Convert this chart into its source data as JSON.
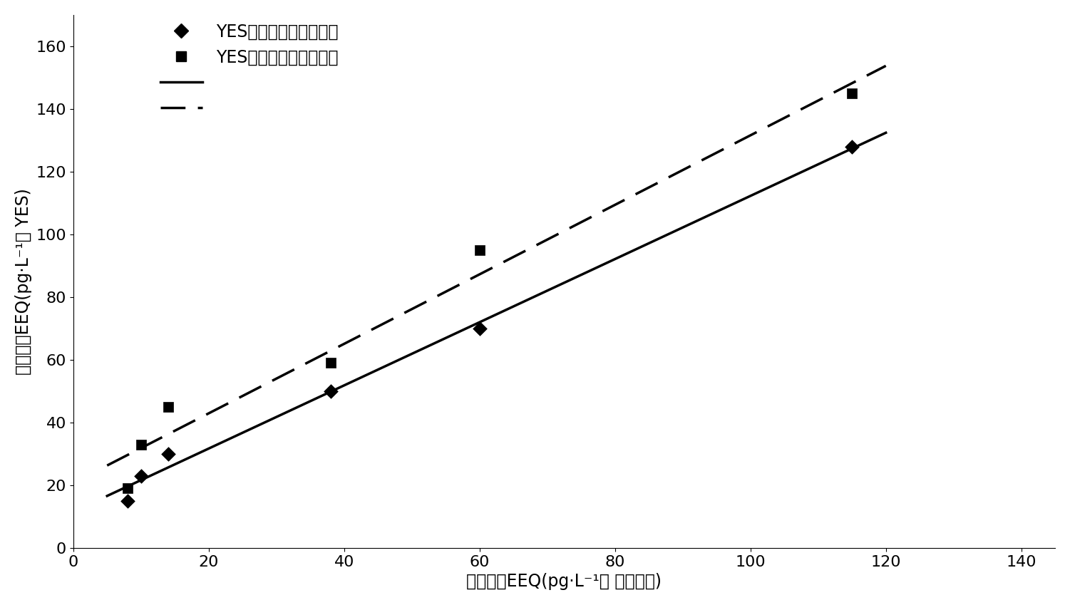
{
  "diamond_x": [
    8,
    10,
    14,
    38,
    60,
    115
  ],
  "diamond_y": [
    15,
    23,
    30,
    50,
    70,
    128
  ],
  "square_x": [
    8,
    10,
    14,
    38,
    60,
    115
  ],
  "square_y": [
    19,
    33,
    45,
    59,
    95,
    145
  ],
  "xlabel": "毒性当量EEQ(pg·L⁻¹， 质谱分析)",
  "ylabel": "毒性当量EEQ(pg·L⁻¹， YES)",
  "legend_marker1": "YES（双杂交酵母细胞）",
  "legend_marker2": "YES（单杂交酵母细胞）",
  "xlim": [
    0,
    145
  ],
  "ylim": [
    0,
    170
  ],
  "xticks": [
    0,
    20,
    40,
    60,
    80,
    100,
    120,
    140
  ],
  "yticks": [
    0,
    20,
    40,
    60,
    80,
    100,
    120,
    140,
    160
  ],
  "background_color": "#ffffff",
  "line_color": "#000000",
  "marker_color": "#000000",
  "title_fontsize": 18,
  "label_fontsize": 17,
  "tick_fontsize": 16,
  "legend_fontsize": 17
}
